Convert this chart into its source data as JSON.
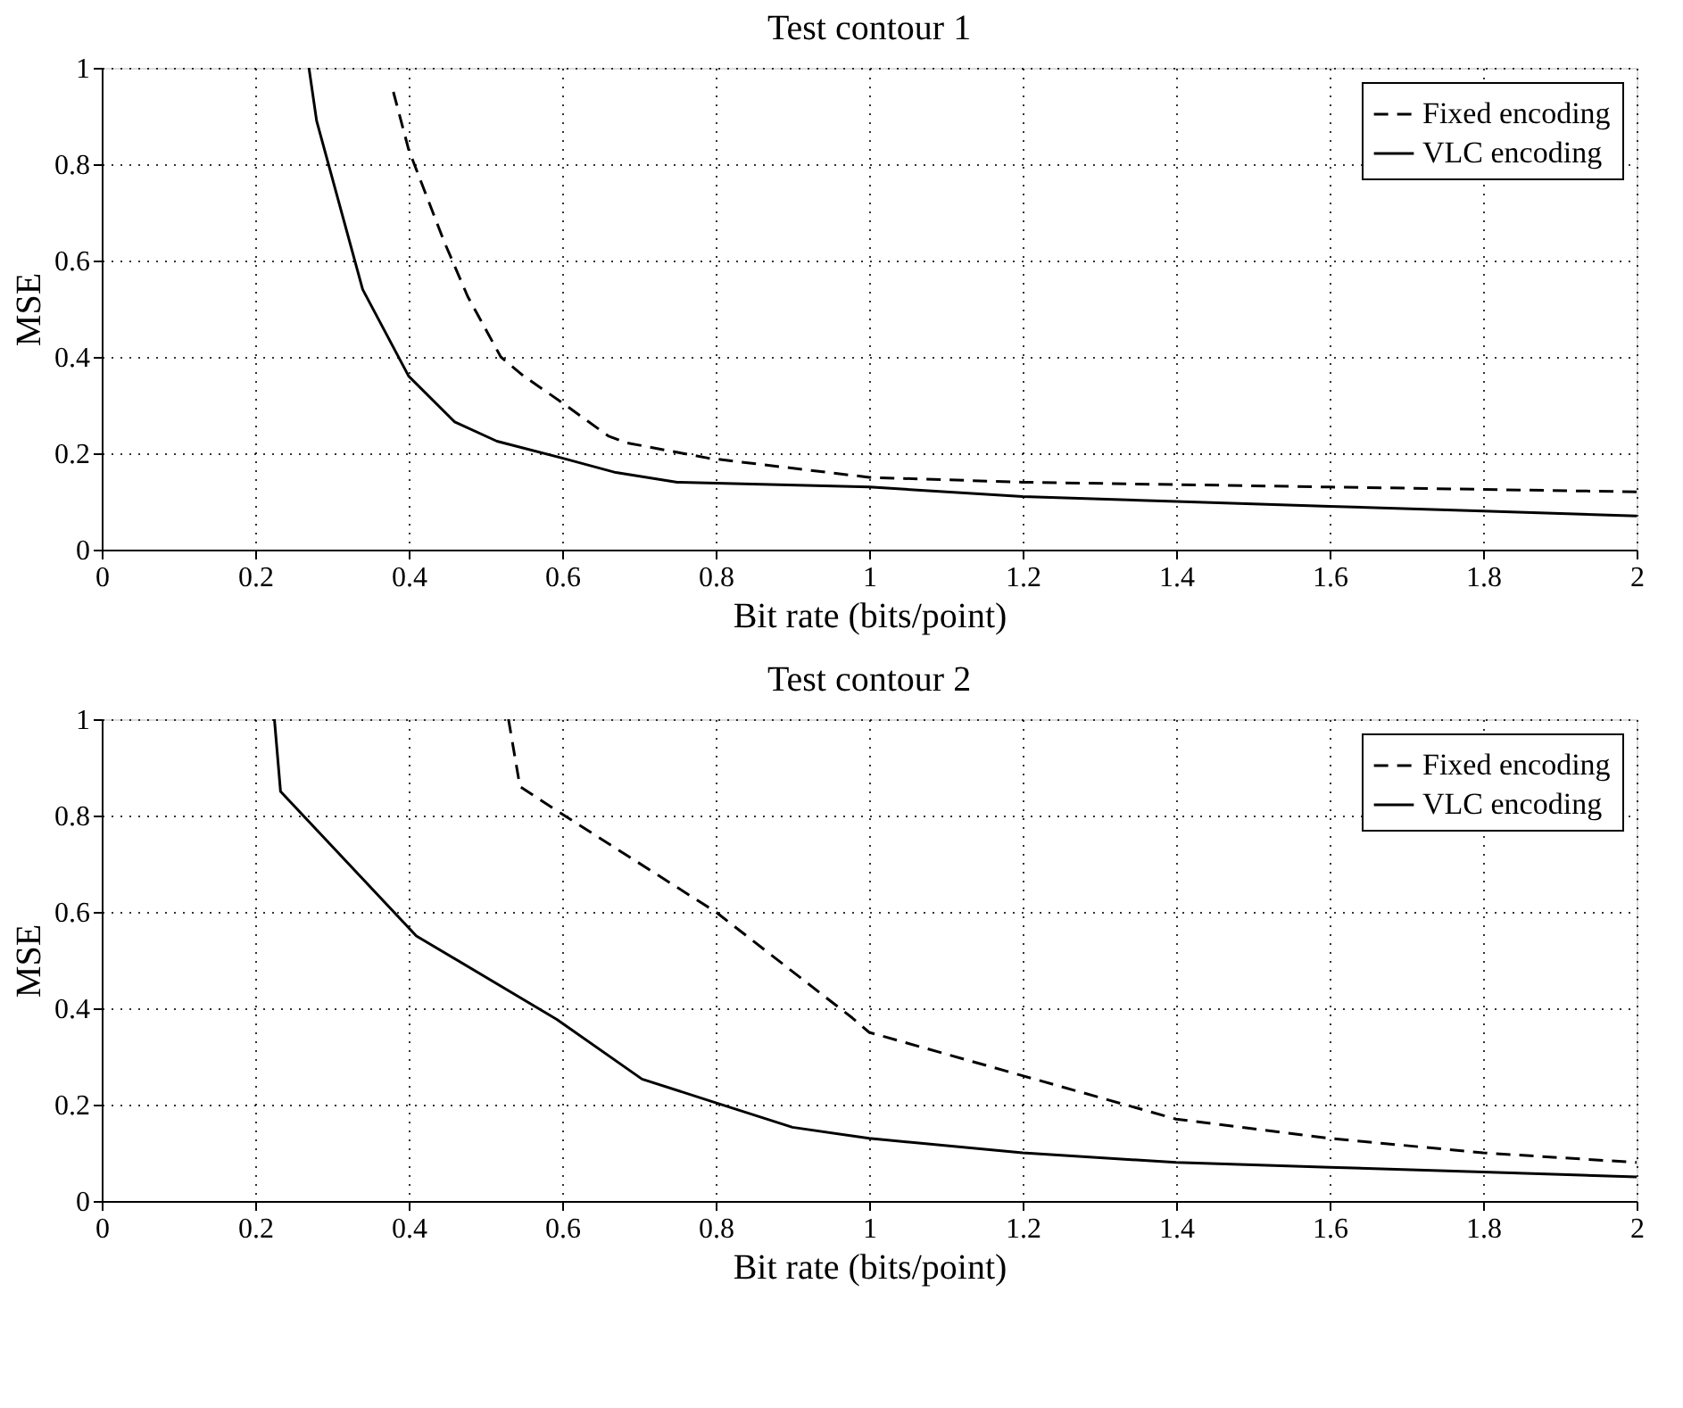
{
  "chart_data": [
    {
      "type": "line",
      "title": "Test contour 1",
      "xlabel": "Bit rate (bits/point)",
      "ylabel": "MSE",
      "xlim": [
        0,
        2
      ],
      "ylim": [
        0,
        1
      ],
      "xticks": [
        0,
        0.2,
        0.4,
        0.6,
        0.8,
        1,
        1.2,
        1.4,
        1.6,
        1.8,
        2
      ],
      "yticks": [
        0,
        0.2,
        0.4,
        0.6,
        0.8,
        1
      ],
      "grid": true,
      "legend": "top right",
      "series": [
        {
          "name": "Fixed encoding",
          "color": "#000000",
          "line_style": "dashed",
          "x": [
            0.38,
            0.4,
            0.446,
            0.477,
            0.52,
            0.55,
            0.6,
            0.66,
            0.683,
            0.79,
            1.0,
            1.2,
            1.6,
            2.0
          ],
          "values": [
            0.95,
            0.83,
            0.64,
            0.525,
            0.4,
            0.36,
            0.305,
            0.236,
            0.222,
            0.19,
            0.15,
            0.14,
            0.13,
            0.12
          ]
        },
        {
          "name": "VLC encoding",
          "color": "#000000",
          "line_style": "solid",
          "x": [
            0.27,
            0.28,
            0.34,
            0.4,
            0.46,
            0.515,
            0.6,
            0.67,
            0.75,
            1.0,
            1.2,
            1.4,
            1.6,
            1.8,
            2.0
          ],
          "values": [
            1.0,
            0.89,
            0.54,
            0.36,
            0.265,
            0.225,
            0.19,
            0.16,
            0.14,
            0.13,
            0.11,
            0.1,
            0.09,
            0.08,
            0.07
          ]
        }
      ]
    },
    {
      "type": "line",
      "title": "Test contour 2",
      "xlabel": "Bit rate (bits/point)",
      "ylabel": "MSE",
      "xlim": [
        0,
        2
      ],
      "ylim": [
        0,
        1
      ],
      "xticks": [
        0,
        0.2,
        0.4,
        0.6,
        0.8,
        1,
        1.2,
        1.4,
        1.6,
        1.8,
        2
      ],
      "yticks": [
        0,
        0.2,
        0.4,
        0.6,
        0.8,
        1
      ],
      "grid": true,
      "legend": "top right",
      "series": [
        {
          "name": "Fixed encoding",
          "color": "#000000",
          "line_style": "dashed",
          "x": [
            0.53,
            0.545,
            0.593,
            0.8,
            0.978,
            1.0,
            1.2,
            1.4,
            1.6,
            1.8,
            2.0
          ],
          "values": [
            1.0,
            0.86,
            0.81,
            0.6,
            0.38,
            0.35,
            0.26,
            0.17,
            0.13,
            0.1,
            0.08
          ]
        },
        {
          "name": "VLC encoding",
          "color": "#000000",
          "line_style": "solid",
          "x": [
            0.225,
            0.233,
            0.41,
            0.593,
            0.704,
            0.8,
            0.9,
            1.0,
            1.2,
            1.4,
            1.6,
            1.8,
            2.0
          ],
          "values": [
            1.0,
            0.85,
            0.55,
            0.377,
            0.253,
            0.204,
            0.153,
            0.13,
            0.1,
            0.08,
            0.07,
            0.06,
            0.05
          ]
        }
      ]
    }
  ]
}
